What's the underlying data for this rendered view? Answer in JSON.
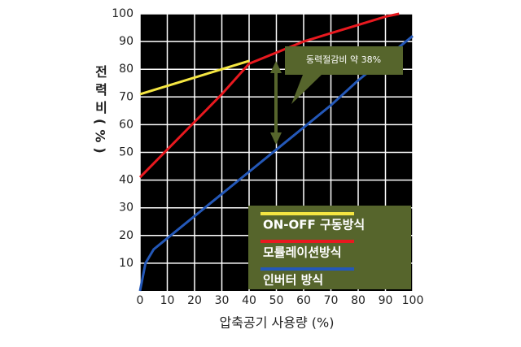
{
  "chart_data": {
    "type": "line",
    "ylabel": "전력비(%)",
    "xlabel": "압축공기 사용량 (%)",
    "annotation": "동력절감비 약 38%",
    "xlim": [
      0,
      100
    ],
    "ylim": [
      0,
      100
    ],
    "xticks": [
      0,
      10,
      20,
      30,
      40,
      50,
      60,
      70,
      80,
      90,
      100
    ],
    "yticks": [
      10,
      20,
      30,
      40,
      50,
      60,
      70,
      80,
      90,
      100
    ],
    "grid": true,
    "legend": "lower right",
    "series": [
      {
        "name": "ON-OFF 구동방식",
        "color": "#f5e642",
        "x": [
          0,
          40
        ],
        "values": [
          71,
          83
        ]
      },
      {
        "name": "모률레이션방식",
        "color": "#e8191f",
        "x": [
          0,
          10,
          20,
          30,
          40,
          50,
          60,
          70,
          80,
          90,
          95
        ],
        "values": [
          41,
          51,
          61,
          71,
          82,
          86,
          90,
          93,
          96,
          99,
          100
        ]
      },
      {
        "name": "인버터 방식",
        "color": "#2458b8",
        "x": [
          0,
          2,
          5,
          10,
          20,
          30,
          40,
          50,
          60,
          70,
          80,
          90,
          100
        ],
        "values": [
          0,
          10,
          15,
          19,
          27,
          35,
          43,
          51,
          59,
          67,
          76,
          84,
          92
        ]
      }
    ]
  }
}
